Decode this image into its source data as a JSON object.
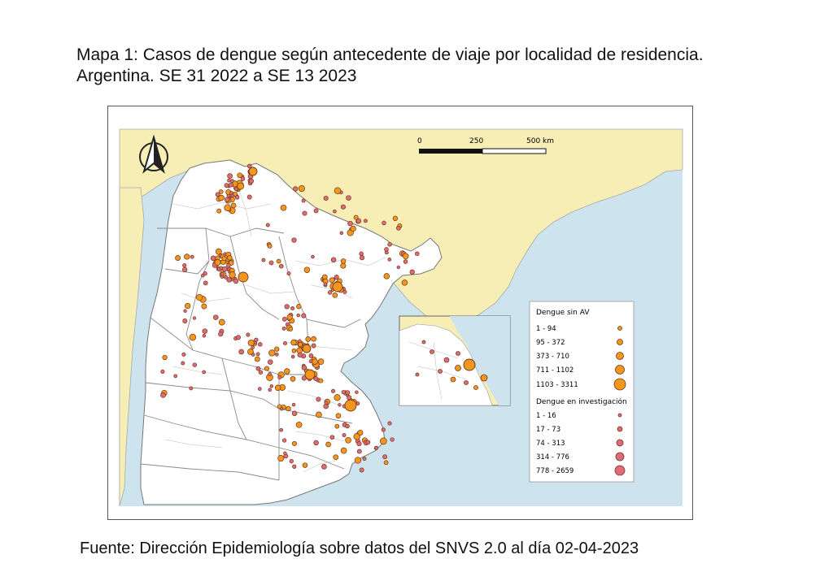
{
  "title": {
    "line1": "Mapa 1: Casos de dengue según antecedente de viaje por localidad de residencia.",
    "line2": "Argentina. SE 31 2022 a SE 13 2023"
  },
  "source": "Fuente: Dirección Epidemiología sobre datos del SNVS 2.0 al día 02-04-2023",
  "colors": {
    "sea": "#cde4ee",
    "land_neighbors": "#f7eeb6",
    "land_argentina": "#ffffff",
    "boundary": "#8a8a8a",
    "sin_av": "#f4961e",
    "en_investigacion": "#e06a78",
    "outline": "#6b3a1a"
  },
  "scale_bar": {
    "labels": [
      "0",
      "250",
      "500 km"
    ]
  },
  "north_arrow": {
    "icon": "north-arrow-icon"
  },
  "legend": {
    "sin_av_title": "Dengue sin AV",
    "sin_av_classes": [
      "1 - 94",
      "95 - 372",
      "373 - 710",
      "711 - 1102",
      "1103 - 3311"
    ],
    "inv_title": "Dengue en investigación",
    "inv_classes": [
      "1 - 16",
      "17 - 73",
      "74 - 313",
      "314 - 776",
      "778 - 2659"
    ]
  }
}
